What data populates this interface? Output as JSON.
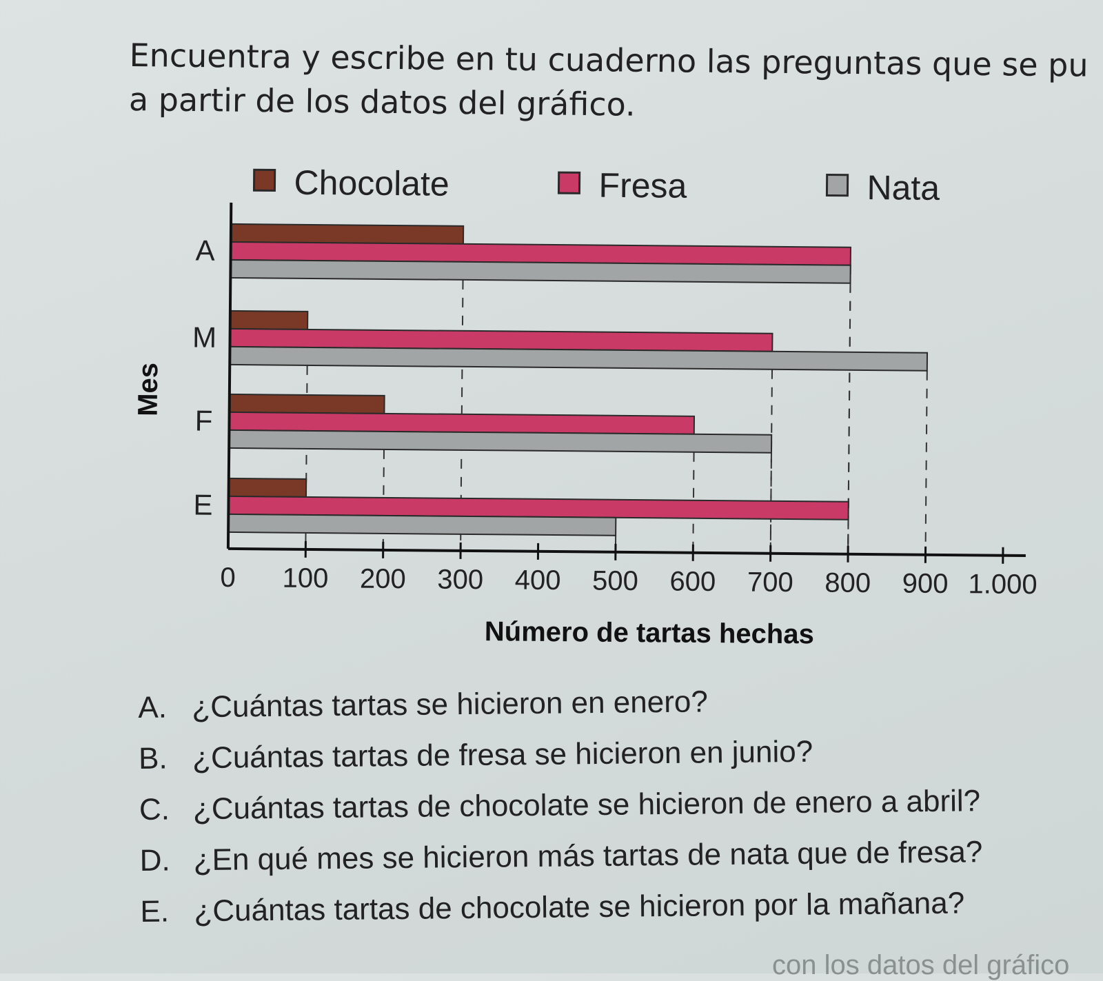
{
  "instructions": {
    "line1": "Encuentra y escribe en tu cuaderno las preguntas que se pu",
    "line2": "a partir de los datos del gráfico."
  },
  "chart_data": {
    "type": "bar",
    "orientation": "horizontal",
    "categories": [
      "A",
      "M",
      "F",
      "E"
    ],
    "series": [
      {
        "name": "Chocolate",
        "values": [
          300,
          100,
          200,
          100
        ],
        "color": "#7a3826"
      },
      {
        "name": "Fresa",
        "values": [
          800,
          700,
          600,
          800
        ],
        "color": "#c93a67"
      },
      {
        "name": "Nata",
        "values": [
          800,
          900,
          700,
          500
        ],
        "color": "#a2a5a5"
      }
    ],
    "xlabel": "Número de tartas hechas",
    "ylabel": "Mes",
    "xlim": [
      0,
      1000
    ],
    "xticks": [
      0,
      100,
      200,
      300,
      400,
      500,
      600,
      700,
      800,
      900,
      1000
    ],
    "xtick_labels": [
      "0",
      "100",
      "200",
      "300",
      "400",
      "500",
      "600",
      "700",
      "800",
      "900",
      "1.000"
    ],
    "legend_position": "top",
    "grid": "dashed reference lines at bar ends"
  },
  "questions": [
    {
      "letter": "A.",
      "text": "¿Cuántas tartas se hicieron en enero?"
    },
    {
      "letter": "B.",
      "text": "¿Cuántas tartas de fresa se hicieron en junio?"
    },
    {
      "letter": "C.",
      "text": "¿Cuántas tartas de chocolate se hicieron de enero a abril?"
    },
    {
      "letter": "D.",
      "text": "¿En qué mes se hicieron más tartas de nata que de fresa?"
    },
    {
      "letter": "E.",
      "text": "¿Cuántas tartas de chocolate se hicieron por la mañana?"
    }
  ],
  "footer_fragment": "con los datos del gráfico"
}
